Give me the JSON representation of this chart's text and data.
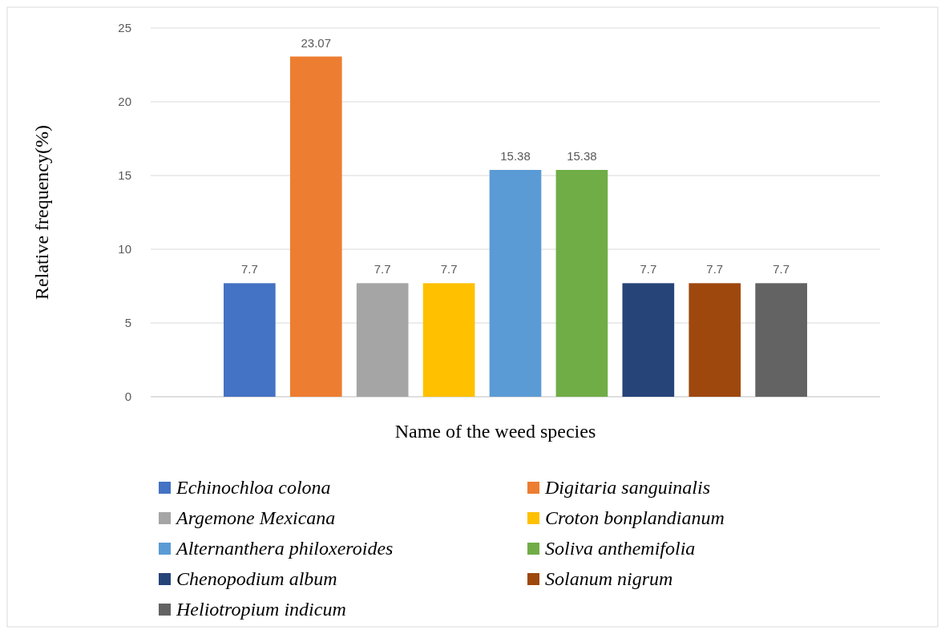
{
  "chart_data": {
    "type": "bar",
    "xlabel": "Name of the weed species",
    "ylabel": "Relative frequency(%)",
    "categories": [
      null
    ],
    "ylim": [
      0,
      25
    ],
    "yticks": [
      0,
      5,
      10,
      15,
      20,
      25
    ],
    "grid": "y",
    "legend": "bottom",
    "data_labels": true,
    "series": [
      {
        "name": "Echinochloa colona",
        "color": "#4472c4",
        "values": [
          7.7
        ]
      },
      {
        "name": "Digitaria sanguinalis",
        "color": "#ed7d31",
        "values": [
          23.07
        ]
      },
      {
        "name": "Argemone Mexicana",
        "color": "#a5a5a5",
        "values": [
          7.7
        ]
      },
      {
        "name": "Croton bonplandianum",
        "color": "#ffc000",
        "values": [
          7.7
        ]
      },
      {
        "name": "Alternanthera philoxeroides",
        "color": "#5b9bd5",
        "values": [
          15.38
        ]
      },
      {
        "name": "Soliva anthemifolia",
        "color": "#70ad47",
        "values": [
          15.38
        ]
      },
      {
        "name": "Chenopodium album",
        "color": "#264478",
        "values": [
          7.7
        ]
      },
      {
        "name": "Solanum nigrum",
        "color": "#9e480e",
        "values": [
          7.7
        ]
      },
      {
        "name": "Heliotropium indicum",
        "color": "#636363",
        "values": [
          7.7
        ]
      }
    ]
  }
}
